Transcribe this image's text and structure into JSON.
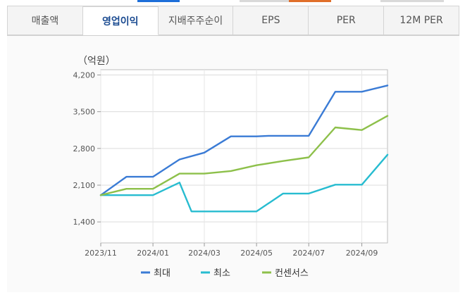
{
  "tabs": [
    {
      "label": "매출액",
      "active": false
    },
    {
      "label": "영업이익",
      "active": true
    },
    {
      "label": "지배주주순이",
      "active": false
    },
    {
      "label": "EPS",
      "active": false
    },
    {
      "label": "PER",
      "active": false
    },
    {
      "label": "12M PER",
      "active": false
    }
  ],
  "chart_data": {
    "type": "line",
    "unit_label": "（억원）",
    "ylim": [
      1000,
      4300
    ],
    "yticks": [
      1400,
      2100,
      2800,
      3500,
      4200
    ],
    "ytick_labels": [
      "1,400",
      "2,100",
      "2,800",
      "3,500",
      "4,200"
    ],
    "xlim": [
      "2023-11",
      "2024-10"
    ],
    "xtick_labels": [
      "2023/11",
      "2024/01",
      "2024/03",
      "2024/05",
      "2024/07",
      "2024/09"
    ],
    "grid": true,
    "legend_position": "bottom",
    "series": [
      {
        "name": "최대",
        "color": "#3a7bd5",
        "points": [
          [
            "2023-11-01",
            1910
          ],
          [
            "2023-12-01",
            2260
          ],
          [
            "2024-01-01",
            2260
          ],
          [
            "2024-02-01",
            2590
          ],
          [
            "2024-03-01",
            2720
          ],
          [
            "2024-04-01",
            3030
          ],
          [
            "2024-05-01",
            3030
          ],
          [
            "2024-05-15",
            3040
          ],
          [
            "2024-07-01",
            3040
          ],
          [
            "2024-08-01",
            3880
          ],
          [
            "2024-09-01",
            3880
          ],
          [
            "2024-10-01",
            4000
          ]
        ]
      },
      {
        "name": "최소",
        "color": "#27bcd0",
        "points": [
          [
            "2023-11-01",
            1910
          ],
          [
            "2024-01-01",
            1910
          ],
          [
            "2024-02-01",
            2150
          ],
          [
            "2024-02-15",
            1600
          ],
          [
            "2024-04-15",
            1600
          ],
          [
            "2024-05-01",
            1600
          ],
          [
            "2024-06-01",
            1940
          ],
          [
            "2024-07-01",
            1940
          ],
          [
            "2024-08-01",
            2110
          ],
          [
            "2024-09-01",
            2110
          ],
          [
            "2024-10-01",
            2680
          ]
        ]
      },
      {
        "name": "컨센서스",
        "color": "#8dc04a",
        "points": [
          [
            "2023-11-01",
            1910
          ],
          [
            "2023-12-01",
            2030
          ],
          [
            "2024-01-01",
            2030
          ],
          [
            "2024-02-01",
            2320
          ],
          [
            "2024-03-01",
            2320
          ],
          [
            "2024-04-01",
            2370
          ],
          [
            "2024-05-01",
            2480
          ],
          [
            "2024-06-01",
            2560
          ],
          [
            "2024-07-01",
            2630
          ],
          [
            "2024-08-01",
            3200
          ],
          [
            "2024-09-01",
            3150
          ],
          [
            "2024-10-01",
            3420
          ]
        ]
      }
    ]
  }
}
